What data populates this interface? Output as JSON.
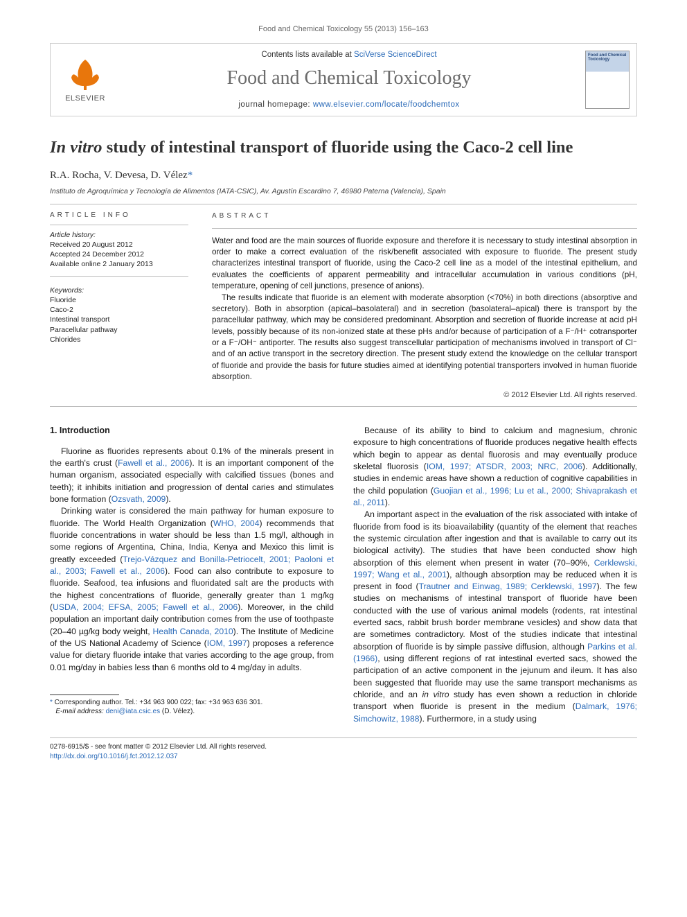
{
  "citation_line": "Food and Chemical Toxicology 55 (2013) 156–163",
  "header": {
    "publisher": "ELSEVIER",
    "contents_prefix": "Contents lists available at ",
    "contents_link": "SciVerse ScienceDirect",
    "journal_name": "Food and Chemical Toxicology",
    "homepage_prefix": "journal homepage: ",
    "homepage_url": "www.elsevier.com/locate/foodchemtox",
    "cover_title": "Food and Chemical Toxicology"
  },
  "title_pre": "In vitro",
  "title_rest": " study of intestinal transport of fluoride using the Caco-2 cell line",
  "authors_html": "R.A. Rocha, V. Devesa, D. Vélez",
  "corr_mark": "*",
  "affil": "Instituto de Agroquímica y Tecnología de Alimentos (IATA-CSIC), Av. Agustín Escardino 7, 46980 Paterna (Valencia), Spain",
  "info_heading": "article info",
  "abs_heading": "abstract",
  "history_label": "Article history:",
  "history": [
    "Received 20 August 2012",
    "Accepted 24 December 2012",
    "Available online 2 January 2013"
  ],
  "kw_label": "Keywords:",
  "keywords": [
    "Fluoride",
    "Caco-2",
    "Intestinal transport",
    "Paracellular pathway",
    "Chlorides"
  ],
  "abstract": [
    "Water and food are the main sources of fluoride exposure and therefore it is necessary to study intestinal absorption in order to make a correct evaluation of the risk/benefit associated with exposure to fluoride. The present study characterizes intestinal transport of fluoride, using the Caco-2 cell line as a model of the intestinal epithelium, and evaluates the coefficients of apparent permeability and intracellular accumulation in various conditions (pH, temperature, opening of cell junctions, presence of anions).",
    "The results indicate that fluoride is an element with moderate absorption (<70%) in both directions (absorptive and secretory). Both in absorption (apical–basolateral) and in secretion (basolateral–apical) there is transport by the paracellular pathway, which may be considered predominant. Absorption and secretion of fluoride increase at acid pH levels, possibly because of its non-ionized state at these pHs and/or because of participation of a F⁻/H⁺ cotransporter or a F⁻/OH⁻ antiporter. The results also suggest transcellular participation of mechanisms involved in transport of Cl⁻ and of an active transport in the secretory direction. The present study extend the knowledge on the cellular transport of fluoride and provide the basis for future studies aimed at identifying potential transporters involved in human fluoride absorption."
  ],
  "copyright": "© 2012 Elsevier Ltd. All rights reserved.",
  "section_head": "1. Introduction",
  "paras": [
    "Fluorine as fluorides represents about 0.1% of the minerals present in the earth's crust (<a href='#'>Fawell et al., 2006</a>). It is an important component of the human organism, associated especially with calcified tissues (bones and teeth); it inhibits initiation and progression of dental caries and stimulates bone formation (<a href='#'>Ozsvath, 2009</a>).",
    "Drinking water is considered the main pathway for human exposure to fluoride. The World Health Organization (<a href='#'>WHO, 2004</a>) recommends that fluoride concentrations in water should be less than 1.5 mg/l, although in some regions of Argentina, China, India, Kenya and Mexico this limit is greatly exceeded (<a href='#'>Trejo-Vázquez and Bonilla-Petriocelt, 2001; Paoloni et al., 2003; Fawell et al., 2006</a>). Food can also contribute to exposure to fluoride. Seafood, tea infusions and fluoridated salt are the products with the highest concentrations of fluoride, generally greater than 1 mg/kg (<a href='#'>USDA, 2004; EFSA, 2005; Fawell et al., 2006</a>). Moreover, in the child population an important daily contribution comes from the use of toothpaste (20–40 µg/kg body weight, <a href='#'>Health Canada, 2010</a>). The Institute of Medicine of the US National Academy of Science (<a href='#'>IOM, 1997</a>) proposes a reference value for dietary fluoride intake that varies according to the age group, from 0.01 mg/day in babies less than 6 months old to 4 mg/day in adults.",
    "Because of its ability to bind to calcium and magnesium, chronic exposure to high concentrations of fluoride produces negative health effects which begin to appear as dental fluorosis and may eventually produce skeletal fluorosis (<a href='#'>IOM, 1997; ATSDR, 2003; NRC, 2006</a>). Additionally, studies in endemic areas have shown a reduction of cognitive capabilities in the child population (<a href='#'>Guojian et al., 1996; Lu et al., 2000; Shivaprakash et al., 2011</a>).",
    "An important aspect in the evaluation of the risk associated with intake of fluoride from food is its bioavailability (quantity of the element that reaches the systemic circulation after ingestion and that is available to carry out its biological activity). The studies that have been conducted show high absorption of this element when present in water (70–90%, <a href='#'>Cerklewski, 1997; Wang et al., 2001</a>), although absorption may be reduced when it is present in food (<a href='#'>Trautner and Einwag, 1989; Cerklewski, 1997</a>). The few studies on mechanisms of intestinal transport of fluoride have been conducted with the use of various animal models (rodents, rat intestinal everted sacs, rabbit brush border membrane vesicles) and show data that are sometimes contradictory. Most of the studies indicate that intestinal absorption of fluoride is by simple passive diffusion, although <a href='#'>Parkins et al. (1966)</a>, using different regions of rat intestinal everted sacs, showed the participation of an active component in the jejunum and ileum. It has also been suggested that fluoride may use the same transport mechanisms as chloride, and an <i>in vitro</i> study has even shown a reduction in chloride transport when fluoride is present in the medium (<a href='#'>Dalmark, 1976; Simchowitz, 1988</a>). Furthermore, in a study using"
  ],
  "footnote": {
    "mark": "*",
    "label": " Corresponding author. Tel.: +34 963 900 022; fax: +34 963 636 301.",
    "email_label": "E-mail address: ",
    "email": "deni@iata.csic.es",
    "email_who": " (D. Vélez)."
  },
  "bottom": {
    "issn_line": "0278-6915/$ - see front matter © 2012 Elsevier Ltd. All rights reserved.",
    "doi": "http://dx.doi.org/10.1016/j.fct.2012.12.037"
  }
}
